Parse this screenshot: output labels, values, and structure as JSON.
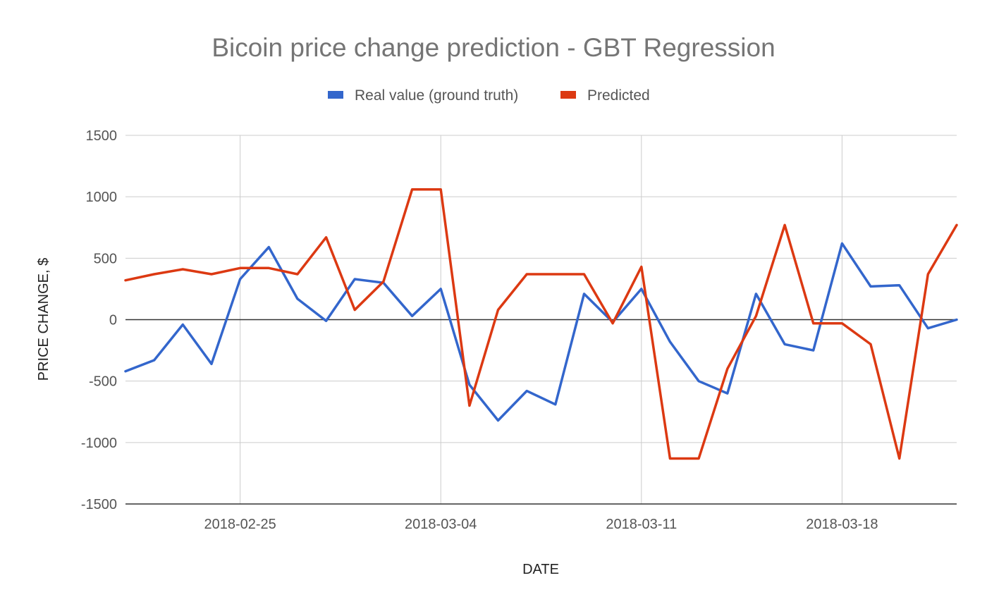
{
  "chart_data": {
    "type": "line",
    "title": "Bicoin price change prediction - GBT Regression",
    "xlabel": "DATE",
    "ylabel": "PRICE CHANGE, $",
    "ylim": [
      -1500,
      1500
    ],
    "yticks": [
      "1500",
      "1000",
      "500",
      "0",
      "-500",
      "-1000",
      "-1500"
    ],
    "xticks": [
      "2018-02-25",
      "2018-03-04",
      "2018-03-11",
      "2018-03-18"
    ],
    "legend_position": "top",
    "grid": true,
    "x": [
      "2018-02-21",
      "2018-02-22",
      "2018-02-23",
      "2018-02-24",
      "2018-02-25",
      "2018-02-26",
      "2018-02-27",
      "2018-02-28",
      "2018-03-01",
      "2018-03-02",
      "2018-03-03",
      "2018-03-04",
      "2018-03-05",
      "2018-03-06",
      "2018-03-07",
      "2018-03-08",
      "2018-03-09",
      "2018-03-10",
      "2018-03-11",
      "2018-03-12",
      "2018-03-13",
      "2018-03-14",
      "2018-03-15",
      "2018-03-16",
      "2018-03-17",
      "2018-03-18",
      "2018-03-19",
      "2018-03-20",
      "2018-03-21",
      "2018-03-22"
    ],
    "series": [
      {
        "name": "Real value (ground truth)",
        "color": "#3366cc",
        "values": [
          -420,
          -330,
          -40,
          -360,
          330,
          590,
          170,
          -10,
          330,
          300,
          30,
          250,
          -530,
          -820,
          -580,
          -690,
          210,
          -20,
          250,
          -180,
          -500,
          -600,
          210,
          -200,
          -250,
          620,
          270,
          280,
          -70,
          0
        ]
      },
      {
        "name": "Predicted",
        "color": "#dc3912",
        "values": [
          320,
          370,
          410,
          370,
          420,
          420,
          370,
          670,
          80,
          310,
          1060,
          1060,
          -700,
          80,
          370,
          370,
          370,
          -30,
          430,
          -1130,
          -1130,
          -400,
          30,
          770,
          -30,
          -30,
          -200,
          -1130,
          370,
          770
        ]
      }
    ]
  }
}
